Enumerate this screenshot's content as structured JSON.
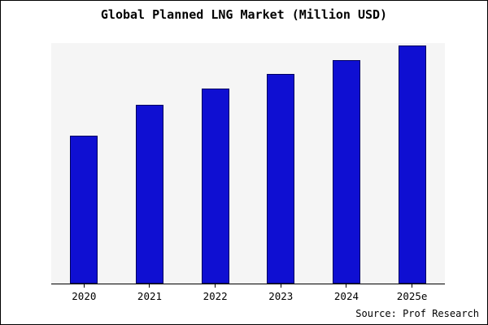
{
  "title": "Global Planned LNG Market (Million USD)",
  "source": "Source: Prof Research",
  "colors": {
    "bar_fill": "#0f0fd2",
    "bar_border": "#000060",
    "plot_background": "#f5f5f5",
    "axis": "#000000"
  },
  "chart_data": {
    "type": "bar",
    "title": "Global Planned LNG Market (Million USD)",
    "categories": [
      "2020",
      "2021",
      "2022",
      "2023",
      "2024",
      "2025e"
    ],
    "values": [
      62,
      75,
      82,
      88,
      94,
      100
    ],
    "xlabel": "",
    "ylabel": "",
    "ylim": [
      0,
      101
    ],
    "grid": false,
    "legend": false,
    "y_axis_ticks_visible": false
  }
}
